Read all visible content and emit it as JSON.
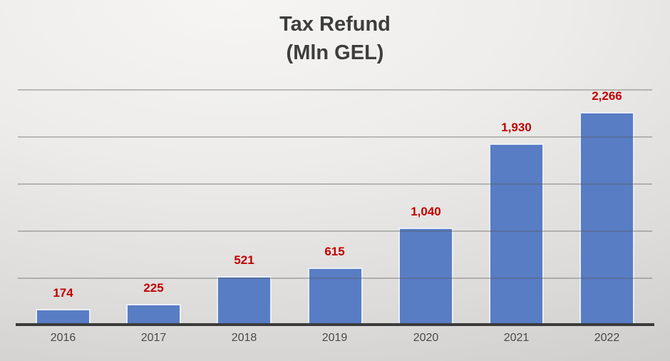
{
  "title": {
    "line1": "Tax Refund",
    "line2": "(Mln GEL)"
  },
  "chart_data": {
    "type": "bar",
    "title": "Tax Refund (Mln GEL)",
    "categories": [
      "2016",
      "2017",
      "2018",
      "2019",
      "2020",
      "2021",
      "2022"
    ],
    "values": [
      174,
      225,
      521,
      615,
      1040,
      1930,
      2266
    ],
    "value_labels": [
      "174",
      "225",
      "521",
      "615",
      "1,040",
      "1,930",
      "2,266"
    ],
    "xlabel": "",
    "ylabel": "",
    "ylim": [
      0,
      2500
    ],
    "gridline_step": 500,
    "grid": true,
    "legend_position": "none",
    "colors": {
      "bar_fill": "#587dc4",
      "bar_border": "#e9eef8",
      "value_label": "#c00000",
      "year_label": "#494949",
      "gridline": "rgba(85,85,85,0.35)",
      "axis_line": "#3b3b3b",
      "title_text": "#3d3d3d"
    }
  }
}
